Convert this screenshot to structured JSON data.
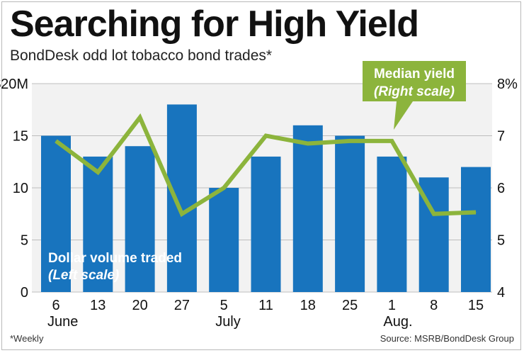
{
  "header": {
    "title": "Searching for High Yield",
    "subtitle": "BondDesk odd lot tobacco bond trades*"
  },
  "footer": {
    "footnote": "*Weekly",
    "source": "Source: MSRB/BondDesk Group"
  },
  "colors": {
    "bar": "#1874be",
    "line": "#8cb43c",
    "grid": "#bdbdbd",
    "panel": "#f2f2f2"
  },
  "chart_data": {
    "type": "bar",
    "categories": [
      "6",
      "13",
      "20",
      "27",
      "5",
      "11",
      "18",
      "25",
      "1",
      "8",
      "15"
    ],
    "month_labels": [
      {
        "label": "June",
        "category_index": 0
      },
      {
        "label": "July",
        "category_index": 4
      },
      {
        "label": "Aug.",
        "category_index": 8
      }
    ],
    "left_axis": {
      "min": 0,
      "max": 20,
      "ticks": [
        {
          "value": 20,
          "label": "$20M"
        },
        {
          "value": 15,
          "label": "15"
        },
        {
          "value": 10,
          "label": "10"
        },
        {
          "value": 5,
          "label": "5"
        },
        {
          "value": 0,
          "label": "0"
        }
      ]
    },
    "right_axis": {
      "min": 4,
      "max": 8,
      "ticks": [
        {
          "value": 8,
          "label": "8%"
        },
        {
          "value": 7,
          "label": "7"
        },
        {
          "value": 6,
          "label": "6"
        },
        {
          "value": 5,
          "label": "5"
        },
        {
          "value": 4,
          "label": "4"
        }
      ]
    },
    "grid": true,
    "series": [
      {
        "label_line1": "Dollar volume traded",
        "label_line2": "(Left scale)",
        "type": "bar",
        "axis": "left",
        "values": [
          15,
          13,
          14,
          18,
          10,
          13,
          16,
          15,
          13,
          11,
          12
        ]
      },
      {
        "label_line1": "Median yield",
        "label_line2": "(Right scale)",
        "type": "line",
        "axis": "right",
        "values": [
          6.9,
          6.3,
          7.35,
          5.5,
          6.0,
          7.0,
          6.85,
          6.9,
          6.9,
          5.5,
          5.53
        ]
      }
    ]
  }
}
